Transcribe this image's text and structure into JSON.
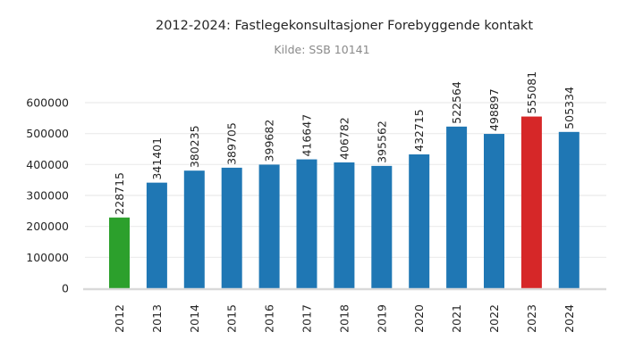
{
  "header": {
    "title": "2012-2024: Fastlegekonsultasjoner Forebyggende kontakt",
    "subtitle": "Kilde: SSB 10141"
  },
  "colors": {
    "default_bar": "#1f77b4",
    "first_bar": "#2ca02c",
    "max_bar": "#d62728",
    "grid": "#ebebeb",
    "axis": "#d9d9d9"
  },
  "chart_data": {
    "type": "bar",
    "title": "2012-2024: Fastlegekonsultasjoner Forebyggende kontakt",
    "subtitle": "Kilde: SSB 10141",
    "xlabel": "",
    "ylabel": "",
    "categories": [
      "2012",
      "2013",
      "2014",
      "2015",
      "2016",
      "2017",
      "2018",
      "2019",
      "2020",
      "2021",
      "2022",
      "2023",
      "2024"
    ],
    "values": [
      228715,
      341401,
      380235,
      389705,
      399682,
      416647,
      406782,
      395562,
      432715,
      522564,
      498897,
      555081,
      505334
    ],
    "bar_colors": [
      "#2ca02c",
      "#1f77b4",
      "#1f77b4",
      "#1f77b4",
      "#1f77b4",
      "#1f77b4",
      "#1f77b4",
      "#1f77b4",
      "#1f77b4",
      "#1f77b4",
      "#1f77b4",
      "#d62728",
      "#1f77b4"
    ],
    "yticks": [
      0,
      100000,
      200000,
      300000,
      400000,
      500000,
      600000
    ],
    "ylim": [
      0,
      600000
    ],
    "grid": true,
    "legend": false,
    "data_labels": true,
    "data_label_rotation": 90,
    "xtick_rotation": 90
  }
}
